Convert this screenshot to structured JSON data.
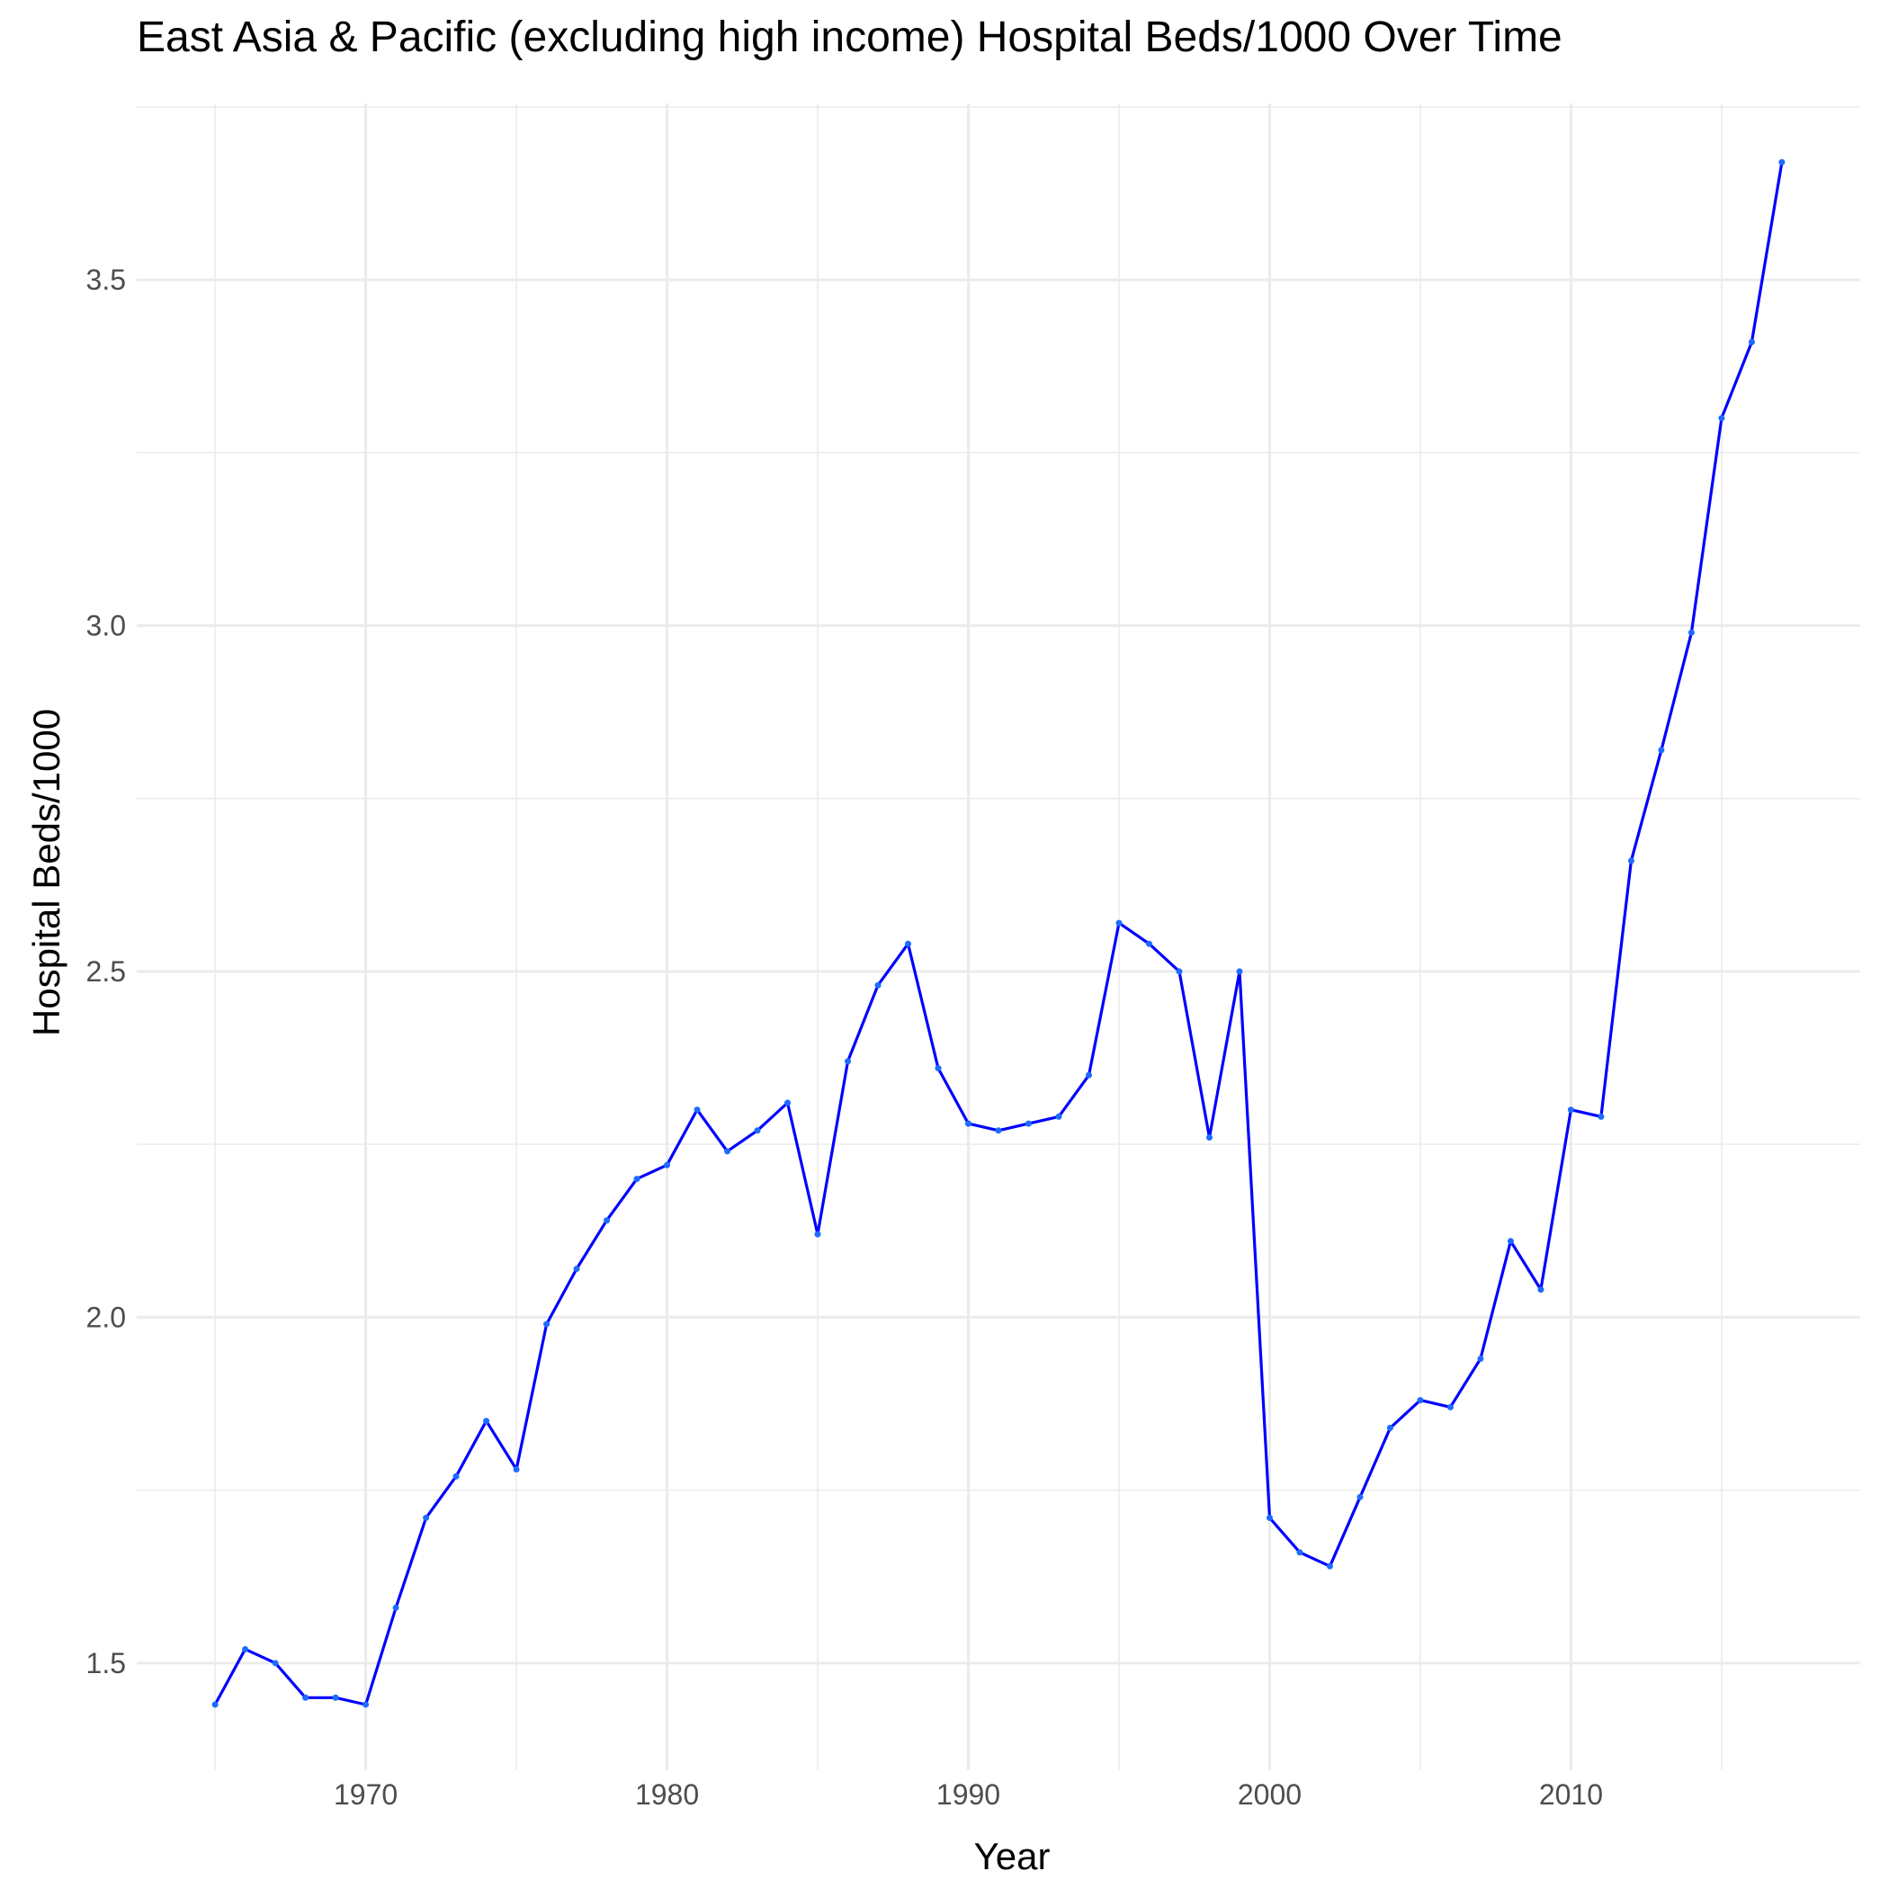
{
  "chart_data": {
    "type": "line",
    "title": "East Asia & Pacific (excluding high income) Hospital Beds/1000 Over Time",
    "xlabel": "Year",
    "ylabel": "Hospital Beds/1000",
    "x_ticks": [
      1970,
      1980,
      1990,
      2000,
      2010
    ],
    "y_ticks": [
      1.5,
      2.0,
      2.5,
      3.0,
      3.5
    ],
    "y_tick_labels": [
      "1.5",
      "2.0",
      "2.5",
      "3.0",
      "3.5"
    ],
    "xlim": [
      1962.4,
      2019.6
    ],
    "ylim": [
      1.345,
      3.755
    ],
    "grid": true,
    "colors": {
      "line": "#0000ff",
      "points": "#1e6bff",
      "grid": "#ebebeb",
      "tick_label": "#4d4d4d"
    },
    "series": [
      {
        "x": [
          1965,
          1966,
          1967,
          1968,
          1969,
          1970,
          1971,
          1972,
          1973,
          1974,
          1975,
          1976,
          1977,
          1978,
          1979,
          1980,
          1981,
          1982,
          1983,
          1984,
          1985,
          1986,
          1987,
          1988,
          1989,
          1990,
          1991,
          1992,
          1993,
          1994,
          1995,
          1996,
          1997,
          1998,
          1999,
          2000,
          2001,
          2002,
          2003,
          2004,
          2005,
          2006,
          2007,
          2008,
          2009,
          2010,
          2011,
          2012,
          2013,
          2014,
          2015,
          2016,
          2017
        ],
        "y": [
          1.44,
          1.52,
          1.5,
          1.45,
          1.45,
          1.44,
          1.58,
          1.71,
          1.77,
          1.85,
          1.78,
          1.99,
          2.07,
          2.14,
          2.2,
          2.22,
          2.3,
          2.24,
          2.27,
          2.31,
          2.12,
          2.37,
          2.48,
          2.54,
          2.36,
          2.28,
          2.27,
          2.28,
          2.29,
          2.35,
          2.57,
          2.54,
          2.5,
          2.26,
          2.5,
          1.71,
          1.66,
          1.64,
          1.74,
          1.84,
          1.88,
          1.87,
          1.94,
          2.11,
          2.04,
          2.3,
          2.29,
          2.66,
          2.82,
          2.99,
          3.3,
          3.41,
          3.67
        ]
      }
    ]
  }
}
